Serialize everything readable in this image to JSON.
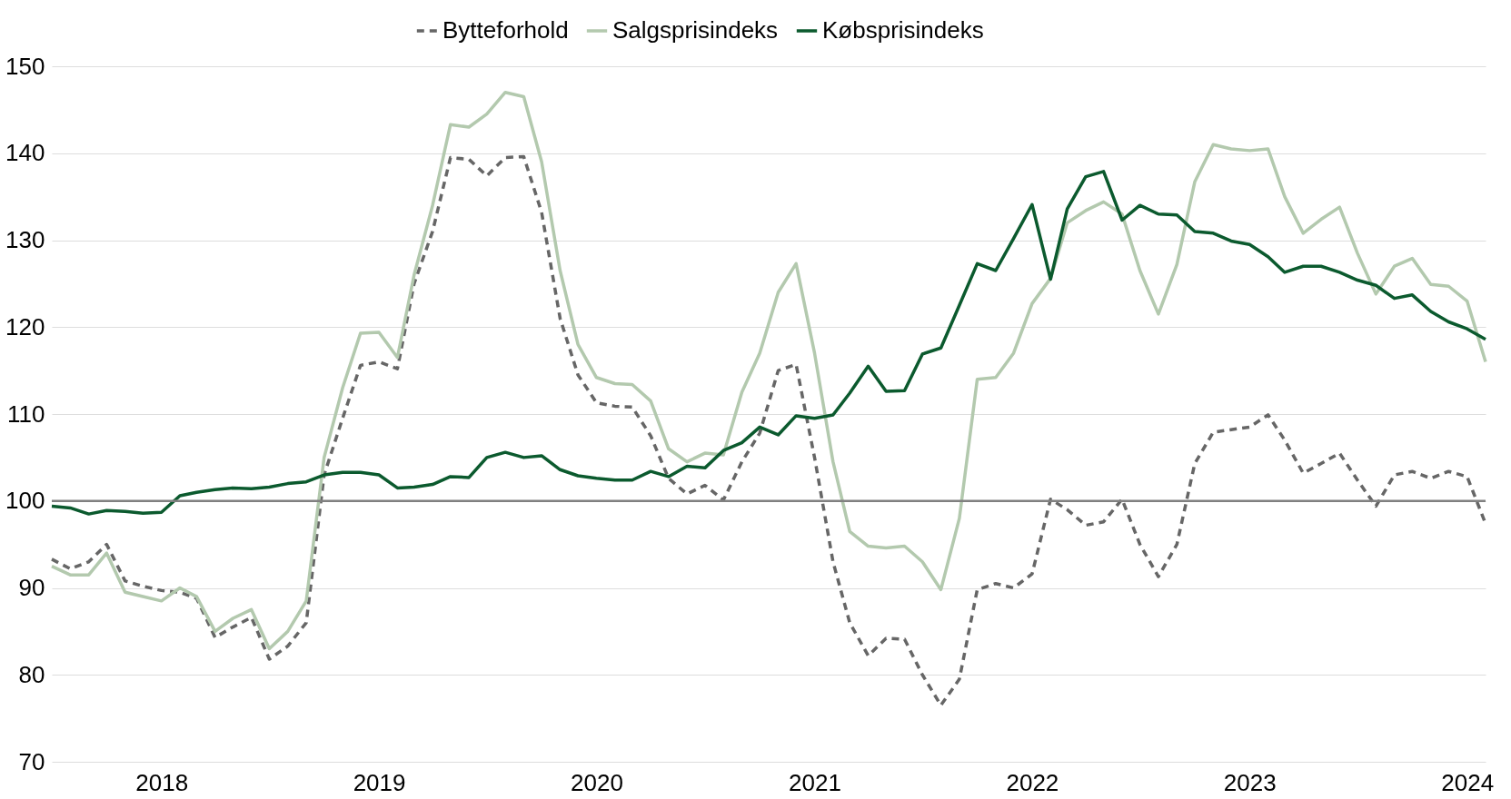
{
  "chart_data": {
    "type": "line",
    "x": [
      "2017-07",
      "2017-08",
      "2017-09",
      "2017-10",
      "2017-11",
      "2017-12",
      "2018-01",
      "2018-02",
      "2018-03",
      "2018-04",
      "2018-05",
      "2018-06",
      "2018-07",
      "2018-08",
      "2018-09",
      "2018-10",
      "2018-11",
      "2018-12",
      "2019-01",
      "2019-02",
      "2019-03",
      "2019-04",
      "2019-05",
      "2019-06",
      "2019-07",
      "2019-08",
      "2019-09",
      "2019-10",
      "2019-11",
      "2019-12",
      "2020-01",
      "2020-02",
      "2020-03",
      "2020-04",
      "2020-05",
      "2020-06",
      "2020-07",
      "2020-08",
      "2020-09",
      "2020-10",
      "2020-11",
      "2020-12",
      "2021-01",
      "2021-02",
      "2021-03",
      "2021-04",
      "2021-05",
      "2021-06",
      "2021-07",
      "2021-08",
      "2021-09",
      "2021-10",
      "2021-11",
      "2021-12",
      "2022-01",
      "2022-02",
      "2022-03",
      "2022-04",
      "2022-05",
      "2022-06",
      "2022-07",
      "2022-08",
      "2022-09",
      "2022-10",
      "2022-11",
      "2022-12",
      "2023-01",
      "2023-02",
      "2023-03",
      "2023-04",
      "2023-05",
      "2023-06",
      "2023-07",
      "2023-08",
      "2023-09",
      "2023-10",
      "2023-11",
      "2023-12",
      "2024-01",
      "2024-02"
    ],
    "series": [
      {
        "name": "Bytteforhold",
        "color": "#666666",
        "line_style": "dashed",
        "values": [
          93.3,
          92.2,
          93,
          95,
          90.8,
          90.2,
          89.7,
          89.5,
          88.8,
          84.3,
          85.5,
          86.6,
          81.8,
          83.3,
          86,
          103,
          109.5,
          115.6,
          116,
          115.2,
          125,
          131,
          139.5,
          139.3,
          137.4,
          139.5,
          139.6,
          133.2,
          121,
          114.5,
          111.3,
          110.9,
          110.8,
          107.5,
          102.6,
          100.8,
          101.8,
          100.1,
          104.5,
          107.8,
          115,
          115.7,
          105,
          93,
          86,
          82.2,
          84.2,
          84.1,
          80,
          76.5,
          79.5,
          89.8,
          90.5,
          90,
          91.6,
          100.2,
          99,
          97.2,
          97.6,
          100.2,
          95,
          91.3,
          95,
          104.3,
          107.9,
          108.2,
          108.5,
          109.9,
          107,
          103.2,
          104.3,
          105.5,
          102.4,
          99.4,
          103,
          103.4,
          102.6,
          103.4,
          102.8,
          97.4
        ]
      },
      {
        "name": "Salgsprisindeks",
        "color": "#b3c9ae",
        "line_style": "solid",
        "values": [
          92.5,
          91.5,
          91.5,
          94,
          89.5,
          89,
          88.5,
          90,
          89,
          85,
          86.5,
          87.5,
          83,
          85,
          88.5,
          105,
          113,
          119.3,
          119.4,
          116.5,
          126,
          134,
          143.3,
          143,
          144.5,
          147,
          146.5,
          139,
          126.5,
          118,
          114.2,
          113.5,
          113.4,
          111.5,
          106,
          104.5,
          105.5,
          105.3,
          112.5,
          117,
          124,
          127.3,
          117,
          104.5,
          96.5,
          94.8,
          94.6,
          94.8,
          93,
          89.8,
          98,
          114,
          114.2,
          117,
          122.7,
          125.6,
          132,
          133.4,
          134.4,
          133,
          126.5,
          121.5,
          127.2,
          136.7,
          141,
          140.5,
          140.3,
          140.5,
          135,
          130.8,
          132.4,
          133.8,
          128.5,
          123.8,
          127,
          127.9,
          124.9,
          124.7,
          123,
          116
        ]
      },
      {
        "name": "Købsprisindeks",
        "color": "#0b5a2e",
        "line_style": "solid",
        "values": [
          99.4,
          99.2,
          98.5,
          98.9,
          98.8,
          98.6,
          98.7,
          100.6,
          101,
          101.3,
          101.5,
          101.4,
          101.6,
          102,
          102.2,
          103,
          103.3,
          103.3,
          103,
          101.5,
          101.6,
          101.9,
          102.8,
          102.7,
          105,
          105.6,
          105,
          105.2,
          103.6,
          102.9,
          102.6,
          102.4,
          102.4,
          103.4,
          102.8,
          104,
          103.8,
          105.8,
          106.7,
          108.5,
          107.6,
          109.8,
          109.5,
          109.9,
          112.4,
          115.5,
          112.6,
          112.7,
          116.9,
          117.6,
          122.5,
          127.3,
          126.5,
          130.2,
          134.1,
          125.5,
          133.6,
          137.3,
          137.9,
          132.3,
          134,
          133,
          132.9,
          131,
          130.8,
          129.9,
          129.5,
          128.1,
          126.3,
          127,
          127,
          126.3,
          125.4,
          124.8,
          123.3,
          123.7,
          121.8,
          120.6,
          119.8,
          118.6
        ]
      }
    ],
    "xlim": [
      "2017-07",
      "2024-02"
    ],
    "xticks": [
      "2018",
      "2019",
      "2020",
      "2021",
      "2022",
      "2023",
      "2024"
    ],
    "ylim": [
      70,
      150
    ],
    "yticks": [
      70,
      80,
      90,
      100,
      110,
      120,
      130,
      140,
      150
    ],
    "ref_lines": [
      {
        "axis": "y",
        "value": 100,
        "color": "#808080"
      }
    ],
    "grid": "y",
    "legend": "top"
  }
}
